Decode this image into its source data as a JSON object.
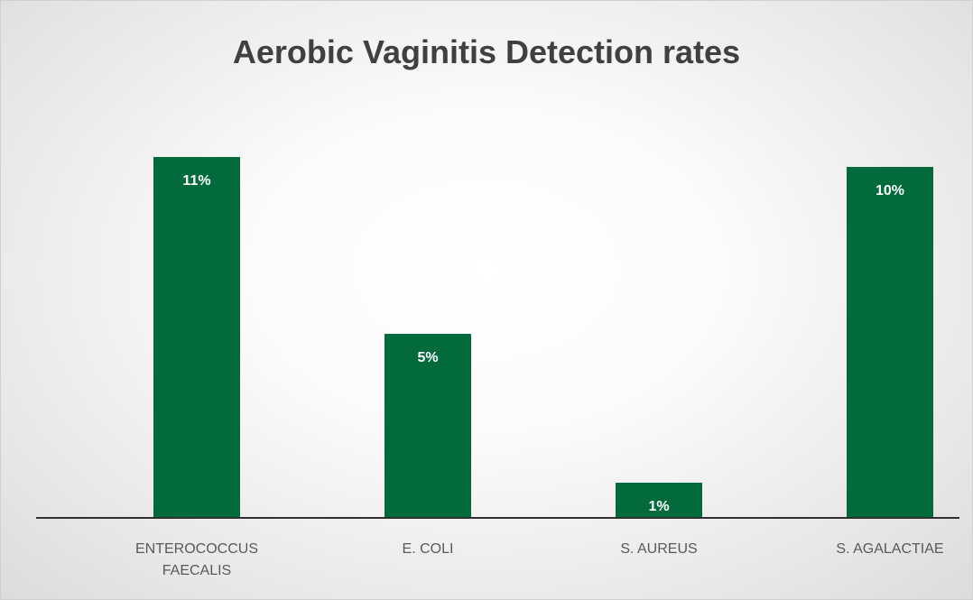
{
  "chart_data": {
    "type": "bar",
    "title": "Aerobic Vaginitis Detection rates",
    "categories": [
      "ENTEROCOCCUS FAECALIS",
      "E. COLI",
      "S. AUREUS",
      "S. AGALACTIAE"
    ],
    "values": [
      10.6,
      5.4,
      1.0,
      10.3
    ],
    "value_labels": [
      "11%",
      "5%",
      "1%",
      "10%"
    ],
    "color": "#036a3c"
  }
}
